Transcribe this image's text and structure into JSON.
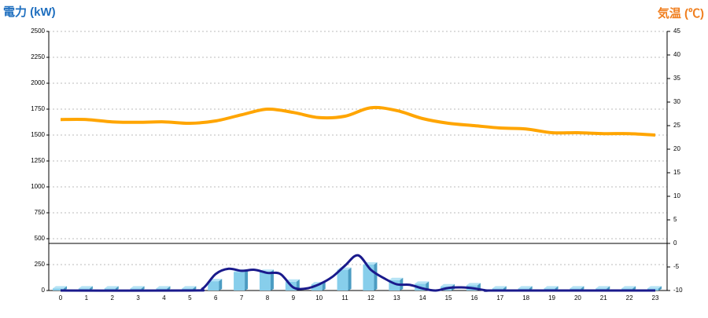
{
  "chart_data": {
    "type": "bar-line",
    "y_title": "電力 (kW)",
    "y2_title": "気温 (℃)",
    "categories": [
      "0",
      "1",
      "2",
      "3",
      "4",
      "5",
      "6",
      "7",
      "8",
      "9",
      "10",
      "11",
      "12",
      "13",
      "14",
      "15",
      "16",
      "17",
      "18",
      "19",
      "20",
      "21",
      "22",
      "23"
    ],
    "ylim": [
      0,
      2500
    ],
    "yticks": [
      0,
      250,
      500,
      750,
      1000,
      1250,
      1500,
      1750,
      2000,
      2250,
      2500
    ],
    "y2lim": [
      -10,
      45
    ],
    "y2ticks": [
      -10,
      -5,
      0,
      5,
      10,
      15,
      20,
      25,
      30,
      35,
      40,
      45
    ],
    "grid": true,
    "series": [
      {
        "kind": "bar",
        "color": "#87ceeb",
        "values": [
          20,
          20,
          20,
          20,
          20,
          20,
          90,
          180,
          180,
          85,
          60,
          200,
          250,
          100,
          65,
          40,
          50,
          20,
          20,
          20,
          20,
          20,
          20,
          20
        ]
      },
      {
        "kind": "line",
        "color": "#1a1a8c",
        "x": [
          0,
          5,
          5.5,
          6,
          6.5,
          7,
          7.5,
          8,
          8.5,
          9,
          9.5,
          10,
          10.5,
          11,
          11.5,
          12,
          12.5,
          13,
          13.5,
          14,
          14.5,
          15,
          15.5,
          16,
          16.5,
          17,
          23
        ],
        "values": [
          0,
          0,
          20,
          160,
          210,
          190,
          200,
          170,
          160,
          30,
          20,
          60,
          130,
          240,
          340,
          200,
          120,
          60,
          55,
          20,
          0,
          25,
          30,
          20,
          0,
          0,
          0
        ]
      },
      {
        "kind": "line",
        "axis": "y2",
        "color": "#ffa500",
        "values": [
          26.3,
          26.3,
          25.8,
          25.7,
          25.8,
          25.5,
          26.0,
          27.3,
          28.5,
          27.8,
          26.7,
          27.0,
          28.8,
          28.2,
          26.5,
          25.5,
          25.0,
          24.5,
          24.3,
          23.5,
          23.5,
          23.3,
          23.3,
          23.0
        ]
      }
    ]
  }
}
